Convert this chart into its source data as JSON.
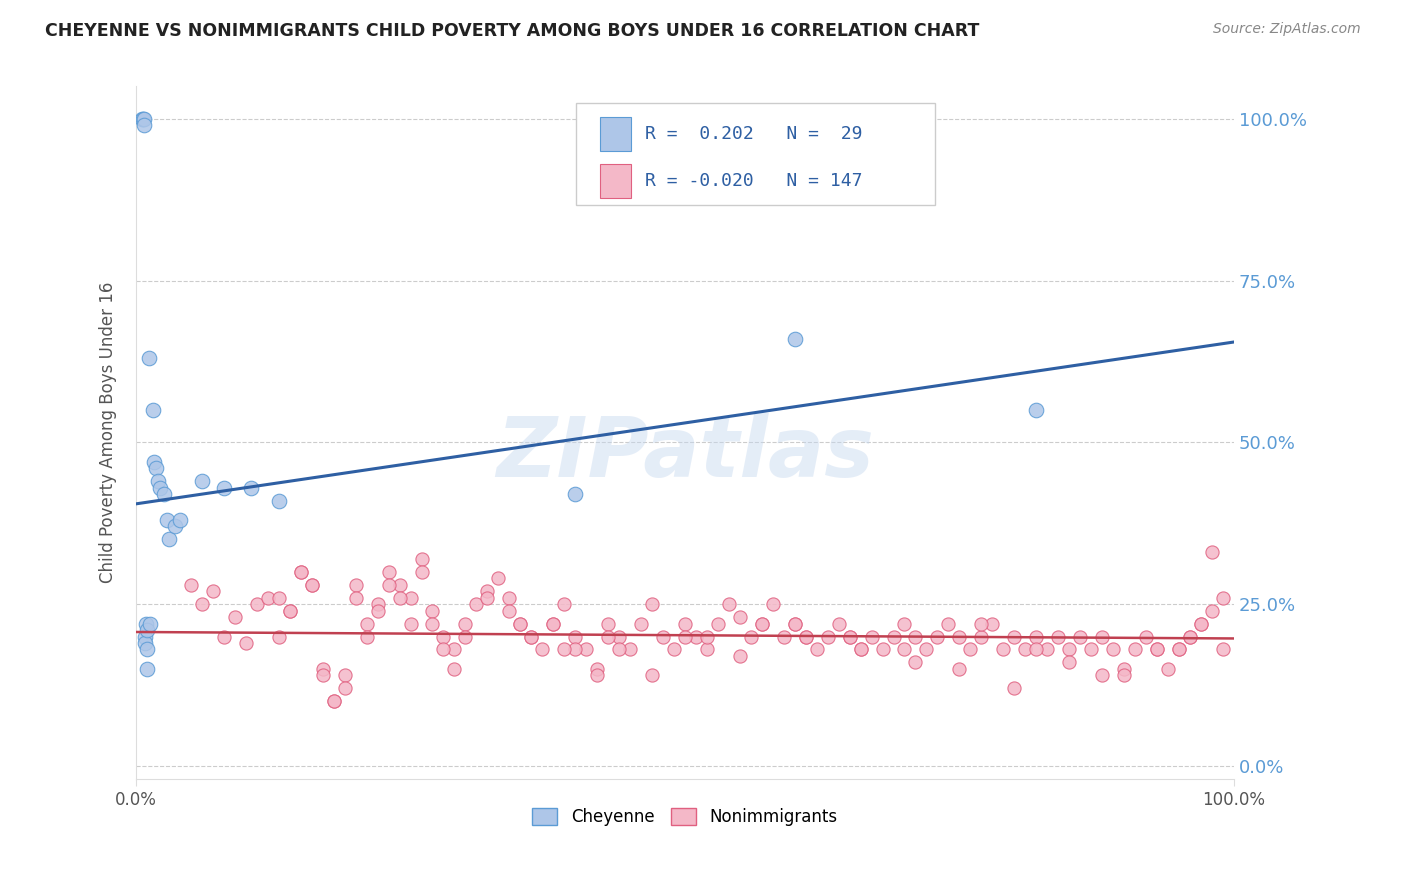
{
  "title": "CHEYENNE VS NONIMMIGRANTS CHILD POVERTY AMONG BOYS UNDER 16 CORRELATION CHART",
  "source": "Source: ZipAtlas.com",
  "ylabel": "Child Poverty Among Boys Under 16",
  "y_tick_labels": [
    "0.0%",
    "25.0%",
    "50.0%",
    "75.0%",
    "100.0%"
  ],
  "y_tick_positions": [
    0.0,
    0.25,
    0.5,
    0.75,
    1.0
  ],
  "xlim": [
    0.0,
    1.0
  ],
  "ylim": [
    -0.02,
    1.05
  ],
  "cheyenne_color": "#aec6e8",
  "cheyenne_edge_color": "#5b9bd5",
  "nonimm_color": "#f4b8c8",
  "nonimm_edge_color": "#e06080",
  "blue_line_color": "#2e5fa3",
  "pink_line_color": "#c04050",
  "R1": 0.202,
  "N1": 29,
  "R2": -0.02,
  "N2": 147,
  "watermark": "ZIPatlas",
  "blue_trend_x0": 0.0,
  "blue_trend_y0": 0.405,
  "blue_trend_x1": 1.0,
  "blue_trend_y1": 0.655,
  "pink_trend_x0": 0.0,
  "pink_trend_y0": 0.207,
  "pink_trend_x1": 1.0,
  "pink_trend_y1": 0.197,
  "cheyenne_x": [
    0.005,
    0.006,
    0.007,
    0.007,
    0.008,
    0.008,
    0.009,
    0.01,
    0.01,
    0.01,
    0.012,
    0.013,
    0.015,
    0.016,
    0.018,
    0.02,
    0.022,
    0.025,
    0.028,
    0.03,
    0.035,
    0.04,
    0.06,
    0.08,
    0.105,
    0.13,
    0.4,
    0.6,
    0.82
  ],
  "cheyenne_y": [
    1.0,
    1.0,
    1.0,
    0.99,
    0.2,
    0.19,
    0.22,
    0.21,
    0.18,
    0.15,
    0.63,
    0.22,
    0.55,
    0.47,
    0.46,
    0.44,
    0.43,
    0.42,
    0.38,
    0.35,
    0.37,
    0.38,
    0.44,
    0.43,
    0.43,
    0.41,
    0.42,
    0.66,
    0.55
  ],
  "nonimm_x": [
    0.05,
    0.06,
    0.07,
    0.08,
    0.09,
    0.1,
    0.11,
    0.12,
    0.13,
    0.14,
    0.15,
    0.16,
    0.17,
    0.18,
    0.19,
    0.2,
    0.21,
    0.22,
    0.23,
    0.24,
    0.25,
    0.26,
    0.27,
    0.28,
    0.29,
    0.3,
    0.31,
    0.32,
    0.33,
    0.34,
    0.35,
    0.36,
    0.37,
    0.38,
    0.39,
    0.4,
    0.41,
    0.42,
    0.43,
    0.44,
    0.45,
    0.46,
    0.47,
    0.48,
    0.49,
    0.5,
    0.51,
    0.52,
    0.53,
    0.54,
    0.55,
    0.56,
    0.57,
    0.58,
    0.59,
    0.6,
    0.61,
    0.62,
    0.63,
    0.64,
    0.65,
    0.66,
    0.67,
    0.68,
    0.69,
    0.7,
    0.71,
    0.72,
    0.73,
    0.74,
    0.75,
    0.76,
    0.77,
    0.78,
    0.79,
    0.8,
    0.81,
    0.82,
    0.83,
    0.84,
    0.85,
    0.86,
    0.87,
    0.88,
    0.89,
    0.9,
    0.91,
    0.92,
    0.93,
    0.94,
    0.95,
    0.96,
    0.97,
    0.98,
    0.99,
    0.13,
    0.14,
    0.15,
    0.16,
    0.17,
    0.18,
    0.19,
    0.2,
    0.21,
    0.22,
    0.23,
    0.24,
    0.25,
    0.26,
    0.27,
    0.28,
    0.29,
    0.3,
    0.32,
    0.34,
    0.36,
    0.38,
    0.4,
    0.42,
    0.44,
    0.5,
    0.55,
    0.6,
    0.65,
    0.7,
    0.75,
    0.8,
    0.85,
    0.9,
    0.95,
    0.97,
    0.98,
    0.99,
    0.96,
    0.93,
    0.88,
    0.82,
    0.77,
    0.71,
    0.66,
    0.61,
    0.57,
    0.52,
    0.47,
    0.43,
    0.39,
    0.35
  ],
  "nonimm_y": [
    0.28,
    0.25,
    0.27,
    0.2,
    0.23,
    0.19,
    0.25,
    0.26,
    0.2,
    0.24,
    0.3,
    0.28,
    0.15,
    0.1,
    0.14,
    0.28,
    0.22,
    0.25,
    0.3,
    0.28,
    0.26,
    0.32,
    0.24,
    0.2,
    0.18,
    0.22,
    0.25,
    0.27,
    0.29,
    0.26,
    0.22,
    0.2,
    0.18,
    0.22,
    0.25,
    0.2,
    0.18,
    0.15,
    0.22,
    0.2,
    0.18,
    0.22,
    0.25,
    0.2,
    0.18,
    0.22,
    0.2,
    0.18,
    0.22,
    0.25,
    0.23,
    0.2,
    0.22,
    0.25,
    0.2,
    0.22,
    0.2,
    0.18,
    0.2,
    0.22,
    0.2,
    0.18,
    0.2,
    0.18,
    0.2,
    0.22,
    0.2,
    0.18,
    0.2,
    0.22,
    0.2,
    0.18,
    0.2,
    0.22,
    0.18,
    0.2,
    0.18,
    0.2,
    0.18,
    0.2,
    0.18,
    0.2,
    0.18,
    0.2,
    0.18,
    0.15,
    0.18,
    0.2,
    0.18,
    0.15,
    0.18,
    0.2,
    0.22,
    0.33,
    0.18,
    0.26,
    0.24,
    0.3,
    0.28,
    0.14,
    0.1,
    0.12,
    0.26,
    0.2,
    0.24,
    0.28,
    0.26,
    0.22,
    0.3,
    0.22,
    0.18,
    0.15,
    0.2,
    0.26,
    0.24,
    0.2,
    0.22,
    0.18,
    0.14,
    0.18,
    0.2,
    0.17,
    0.22,
    0.2,
    0.18,
    0.15,
    0.12,
    0.16,
    0.14,
    0.18,
    0.22,
    0.24,
    0.26,
    0.2,
    0.18,
    0.14,
    0.18,
    0.22,
    0.16,
    0.18,
    0.2,
    0.22,
    0.2,
    0.14,
    0.2,
    0.18,
    0.22
  ]
}
